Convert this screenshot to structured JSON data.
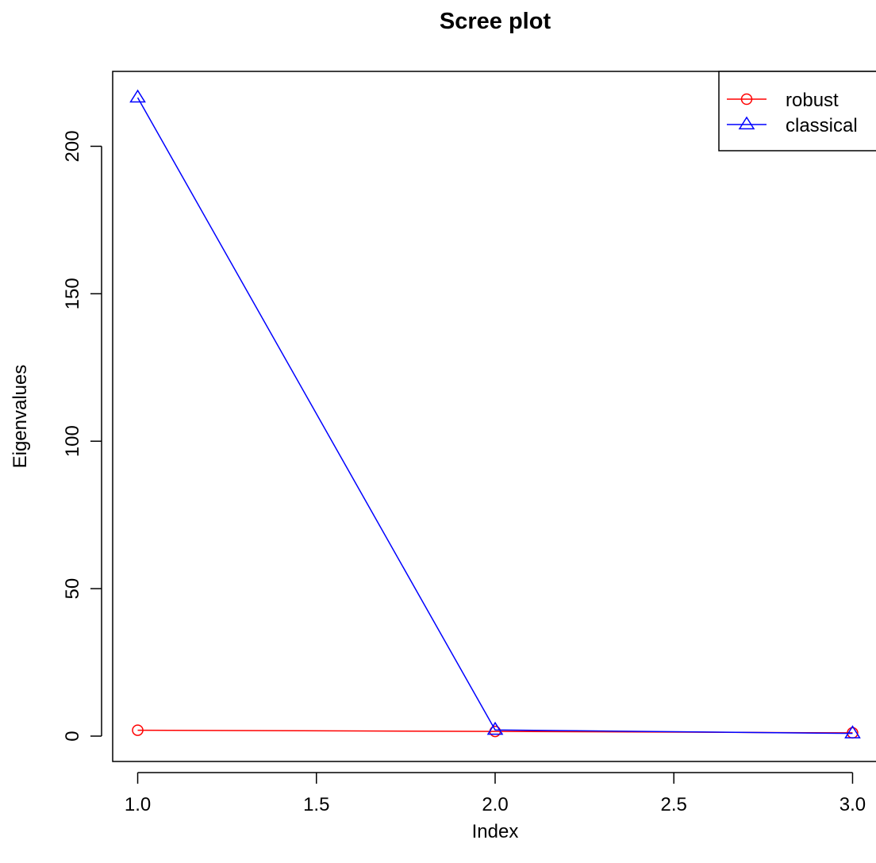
{
  "chart_data": {
    "type": "line",
    "title": "Scree plot",
    "xlabel": "Index",
    "ylabel": "Eigenvalues",
    "xlim": [
      0.93,
      3.07
    ],
    "ylim": [
      -8.6,
      225.4
    ],
    "x_ticks": [
      1.0,
      1.5,
      2.0,
      2.5,
      3.0
    ],
    "x_tick_labels": [
      "1.0",
      "1.5",
      "2.0",
      "2.5",
      "3.0"
    ],
    "y_ticks": [
      0,
      50,
      100,
      150,
      200
    ],
    "y_tick_labels": [
      "0",
      "50",
      "100",
      "150",
      "200"
    ],
    "x": [
      1,
      2,
      3
    ],
    "series": [
      {
        "name": "robust",
        "color": "#ff0000",
        "marker": "circle",
        "values": [
          2.0,
          1.6,
          1.1
        ]
      },
      {
        "name": "classical",
        "color": "#0000ff",
        "marker": "triangle",
        "values": [
          216.5,
          2.1,
          0.9
        ]
      }
    ],
    "legend": {
      "position": "top-right"
    },
    "grid": false
  }
}
